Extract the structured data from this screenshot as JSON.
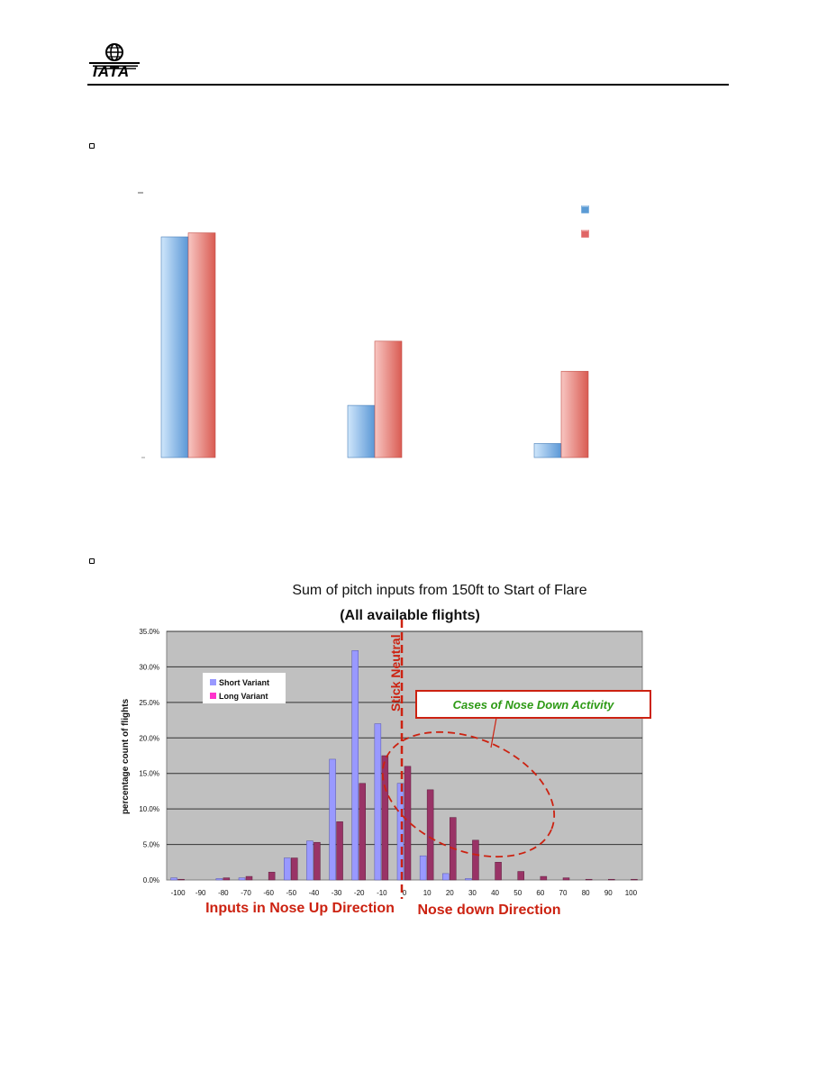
{
  "header": {
    "logo_text": "IATA"
  },
  "chart_data": [
    {
      "type": "bar",
      "categories": [
        "",
        "",
        ""
      ],
      "series": [
        {
          "values": [
            11.0,
            2.6,
            0.7
          ],
          "color": "#6fa8dc"
        },
        {
          "values": [
            11.2,
            5.8,
            4.3
          ],
          "color": "#e06666"
        }
      ],
      "ylim": [
        0,
        13.2
      ],
      "legend_position": "top-right",
      "grid": false
    },
    {
      "type": "bar",
      "title": "Sum of  pitch inputs from 150ft to Start of Flare",
      "subtitle": "(All available flights)",
      "ylabel": "percentage count of flights",
      "xlabel": "",
      "categories": [
        "-100",
        "-90",
        "-80",
        "-70",
        "-60",
        "-50",
        "-40",
        "-30",
        "-20",
        "-10",
        "0",
        "10",
        "20",
        "30",
        "40",
        "50",
        "60",
        "70",
        "80",
        "90",
        "100"
      ],
      "y_ticks": [
        "0.0%",
        "5.0%",
        "10.0%",
        "15.0%",
        "20.0%",
        "25.0%",
        "30.0%",
        "35.0%"
      ],
      "ylim": [
        0,
        35
      ],
      "grid": true,
      "legend_position": "top-left",
      "series": [
        {
          "name": "Short Variant",
          "color": "#9999ff",
          "values": [
            0.3,
            0.0,
            0.2,
            0.3,
            0.0,
            3.1,
            5.5,
            17.0,
            32.3,
            22.0,
            13.6,
            3.4,
            0.9,
            0.2,
            0.0,
            0.0,
            0.0,
            0.0,
            0.0,
            0.0,
            0.0
          ]
        },
        {
          "name": "Long Variant",
          "color": "#993366",
          "values": [
            0.1,
            0.0,
            0.3,
            0.5,
            1.1,
            3.1,
            5.3,
            8.2,
            13.6,
            17.5,
            16.0,
            12.7,
            8.8,
            5.6,
            2.5,
            1.2,
            0.5,
            0.3,
            0.1,
            0.1,
            0.1
          ]
        }
      ],
      "annotations": {
        "stick_neutral": "Stick Neutral",
        "callout": "Cases of Nose Down Activity",
        "left_direction": "Inputs in Nose Up Direction",
        "right_direction": "Nose down Direction"
      },
      "annotation_colors": {
        "red": "#cc2211",
        "green": "#2e9a16"
      }
    }
  ]
}
